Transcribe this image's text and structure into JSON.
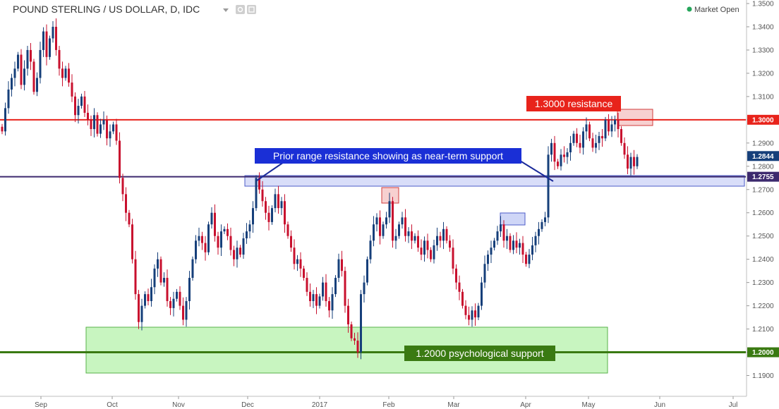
{
  "header": {
    "title": "POUND STERLING / US DOLLAR, D, IDC",
    "status": "Market Open",
    "icons": [
      "dropdown-caret-icon",
      "settings-icon",
      "maximize-icon"
    ]
  },
  "colors": {
    "up": "#163f7a",
    "down": "#c8102e",
    "resistance_line": "#e8231b",
    "support_line": "#3a7a12",
    "current_line": "#3c2a6e",
    "support_zone_fill": "#c8f5c0",
    "blue_zone_fill": "#cfd6f7",
    "red_zone_fill": "#f7d0d0",
    "status_dot": "#26a65b"
  },
  "chart_data": {
    "type": "candlestick",
    "title": "POUND STERLING / US DOLLAR, D, IDC",
    "ylim": [
      1.185,
      1.35
    ],
    "yticks": [
      "1.3500",
      "1.3400",
      "1.3300",
      "1.3200",
      "1.3100",
      "1.3000",
      "1.2900",
      "1.2800",
      "1.2700",
      "1.2600",
      "1.2500",
      "1.2400",
      "1.2300",
      "1.2200",
      "1.2100",
      "1.2000",
      "1.1900"
    ],
    "xticks": [
      "Sep",
      "Oct",
      "Nov",
      "Dec",
      "2017",
      "Feb",
      "Mar",
      "Apr",
      "May",
      "Jun",
      "Jul"
    ],
    "price_labels": [
      {
        "text": "1.3000",
        "value": 1.3,
        "color": "#e8231b"
      },
      {
        "text": "1.2844",
        "value": 1.2844,
        "color": "#163f7a"
      },
      {
        "text": "1.2755",
        "value": 1.2755,
        "color": "#3c2a6e"
      },
      {
        "text": "1.2000",
        "value": 1.2,
        "color": "#3a7a12"
      }
    ],
    "horizontal_lines": [
      {
        "value": 1.3,
        "kind": "resistance"
      },
      {
        "value": 1.2755,
        "kind": "current"
      },
      {
        "value": 1.2,
        "kind": "support"
      }
    ],
    "annotations": [
      "1.3000 resistance",
      "Prior range resistance showing as near-term support",
      "1.2000 psychological support"
    ],
    "closes": [
      1.295,
      1.305,
      1.313,
      1.318,
      1.322,
      1.328,
      1.315,
      1.322,
      1.33,
      1.325,
      1.312,
      1.318,
      1.33,
      1.338,
      1.327,
      1.335,
      1.34,
      1.33,
      1.322,
      1.318,
      1.322,
      1.316,
      1.31,
      1.302,
      1.306,
      1.31,
      1.303,
      1.3,
      1.296,
      1.302,
      1.294,
      1.298,
      1.3,
      1.292,
      1.295,
      1.298,
      1.291,
      1.275,
      1.268,
      1.26,
      1.255,
      1.24,
      1.225,
      1.213,
      1.22,
      1.225,
      1.222,
      1.228,
      1.236,
      1.24,
      1.23,
      1.232,
      1.222,
      1.219,
      1.223,
      1.226,
      1.22,
      1.214,
      1.222,
      1.232,
      1.24,
      1.248,
      1.25,
      1.247,
      1.243,
      1.255,
      1.26,
      1.25,
      1.245,
      1.252,
      1.253,
      1.25,
      1.244,
      1.24,
      1.245,
      1.242,
      1.249,
      1.252,
      1.255,
      1.262,
      1.275,
      1.27,
      1.265,
      1.26,
      1.256,
      1.262,
      1.268,
      1.262,
      1.265,
      1.255,
      1.25,
      1.245,
      1.238,
      1.24,
      1.236,
      1.232,
      1.226,
      1.222,
      1.225,
      1.22,
      1.224,
      1.23,
      1.222,
      1.218,
      1.225,
      1.232,
      1.24,
      1.235,
      1.22,
      1.212,
      1.206,
      1.205,
      1.2,
      1.225,
      1.23,
      1.24,
      1.248,
      1.255,
      1.258,
      1.25,
      1.255,
      1.258,
      1.265,
      1.248,
      1.25,
      1.255,
      1.258,
      1.25,
      1.252,
      1.248,
      1.25,
      1.245,
      1.242,
      1.248,
      1.244,
      1.24,
      1.246,
      1.25,
      1.248,
      1.253,
      1.248,
      1.245,
      1.236,
      1.23,
      1.226,
      1.22,
      1.216,
      1.214,
      1.218,
      1.215,
      1.22,
      1.23,
      1.238,
      1.242,
      1.245,
      1.248,
      1.252,
      1.255,
      1.248,
      1.25,
      1.244,
      1.248,
      1.245,
      1.247,
      1.242,
      1.238,
      1.242,
      1.246,
      1.25,
      1.253,
      1.256,
      1.258,
      1.285,
      1.29,
      1.282,
      1.28,
      1.285,
      1.284,
      1.286,
      1.29,
      1.294,
      1.29,
      1.288,
      1.295,
      1.298,
      1.292,
      1.288,
      1.29,
      1.293,
      1.292,
      1.3,
      1.295,
      1.298,
      1.3,
      1.296,
      1.29,
      1.285,
      1.279,
      1.284,
      1.28,
      1.284
    ]
  }
}
